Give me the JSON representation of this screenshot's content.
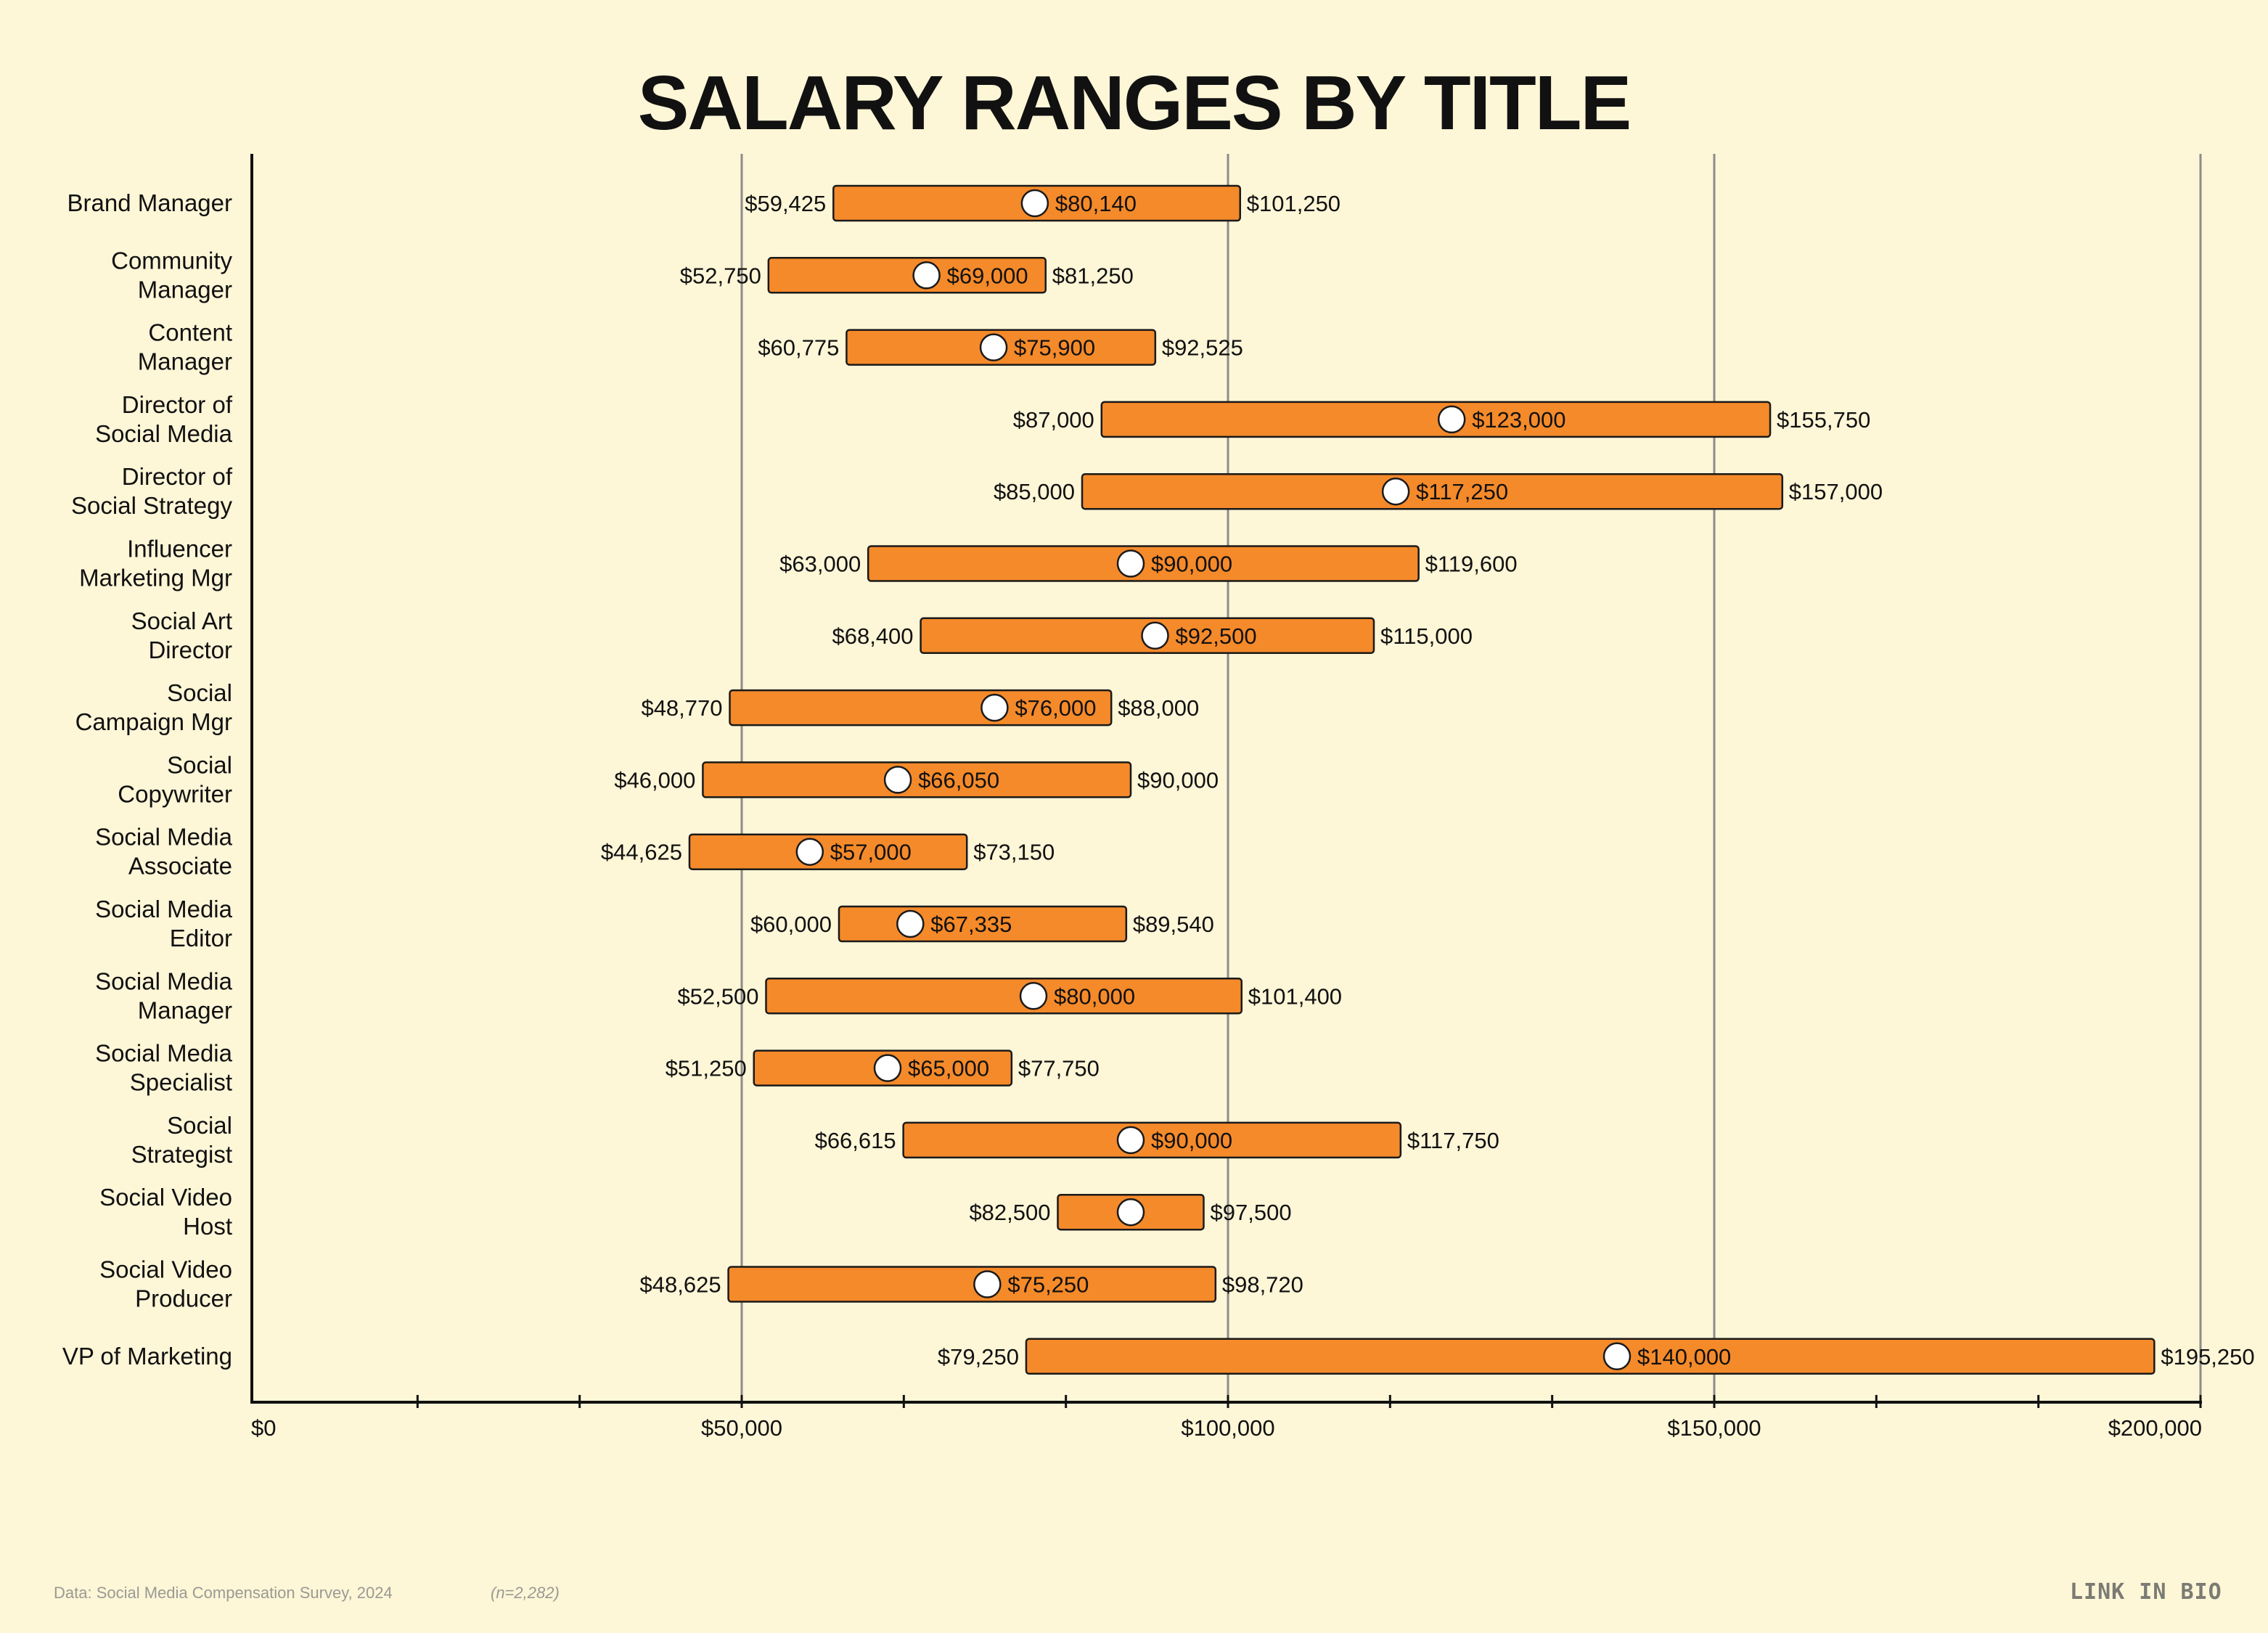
{
  "chart_data": {
    "type": "range-bar",
    "title": "SALARY RANGES BY TITLE",
    "xlim": [
      0,
      200000
    ],
    "xticks": [
      0,
      50000,
      100000,
      150000,
      200000
    ],
    "xtick_labels": [
      "$0",
      "$50,000",
      "$100,000",
      "$150,000",
      "$200,000"
    ],
    "grid": true,
    "rows": [
      {
        "title": [
          "Brand Manager"
        ],
        "min": 59425,
        "median": 80140,
        "max": 101250,
        "min_label": "$59,425",
        "median_label": "$80,140",
        "max_label": "$101,250"
      },
      {
        "title": [
          "Community",
          "Manager"
        ],
        "min": 52750,
        "median": 69000,
        "max": 81250,
        "min_label": "$52,750",
        "median_label": "$69,000",
        "max_label": "$81,250"
      },
      {
        "title": [
          "Content",
          "Manager"
        ],
        "min": 60775,
        "median": 75900,
        "max": 92525,
        "min_label": "$60,775",
        "median_label": "$75,900",
        "max_label": "$92,525"
      },
      {
        "title": [
          "Director of",
          "Social Media"
        ],
        "min": 87000,
        "median": 123000,
        "max": 155750,
        "min_label": "$87,000",
        "median_label": "$123,000",
        "max_label": "$155,750"
      },
      {
        "title": [
          "Director of",
          "Social Strategy"
        ],
        "min": 85000,
        "median": 117250,
        "max": 157000,
        "min_label": "$85,000",
        "median_label": "$117,250",
        "max_label": "$157,000"
      },
      {
        "title": [
          "Influencer",
          "Marketing Mgr"
        ],
        "min": 63000,
        "median": 90000,
        "max": 119600,
        "min_label": "$63,000",
        "median_label": "$90,000",
        "max_label": "$119,600"
      },
      {
        "title": [
          "Social Art",
          "Director"
        ],
        "min": 68400,
        "median": 92500,
        "max": 115000,
        "min_label": "$68,400",
        "median_label": "$92,500",
        "max_label": "$115,000"
      },
      {
        "title": [
          "Social",
          "Campaign Mgr"
        ],
        "min": 48770,
        "median": 76000,
        "max": 88000,
        "min_label": "$48,770",
        "median_label": "$76,000",
        "max_label": "$88,000"
      },
      {
        "title": [
          "Social",
          "Copywriter"
        ],
        "min": 46000,
        "median": 66050,
        "max": 90000,
        "min_label": "$46,000",
        "median_label": "$66,050",
        "max_label": "$90,000"
      },
      {
        "title": [
          "Social Media",
          "Associate"
        ],
        "min": 44625,
        "median": 57000,
        "max": 73150,
        "min_label": "$44,625",
        "median_label": "$57,000",
        "max_label": "$73,150"
      },
      {
        "title": [
          "Social Media",
          "Editor"
        ],
        "min": 60000,
        "median": 67335,
        "max": 89540,
        "min_label": "$60,000",
        "median_label": "$67,335",
        "max_label": "$89,540"
      },
      {
        "title": [
          "Social Media",
          "Manager"
        ],
        "min": 52500,
        "median": 80000,
        "max": 101400,
        "min_label": "$52,500",
        "median_label": "$80,000",
        "max_label": "$101,400"
      },
      {
        "title": [
          "Social Media",
          "Specialist"
        ],
        "min": 51250,
        "median": 65000,
        "max": 77750,
        "min_label": "$51,250",
        "median_label": "$65,000",
        "max_label": "$77,750"
      },
      {
        "title": [
          "Social",
          "Strategist"
        ],
        "min": 66615,
        "median": 90000,
        "max": 117750,
        "min_label": "$66,615",
        "median_label": "$90,000",
        "max_label": "$117,750"
      },
      {
        "title": [
          "Social Video",
          "Host"
        ],
        "min": 82500,
        "median": 90000,
        "max": 97500,
        "min_label": "$82,500",
        "median_label": "",
        "max_label": "$97,500"
      },
      {
        "title": [
          "Social Video",
          "Producer"
        ],
        "min": 48625,
        "median": 75250,
        "max": 98720,
        "min_label": "$48,625",
        "median_label": "$75,250",
        "max_label": "$98,720"
      },
      {
        "title": [
          "VP of Marketing"
        ],
        "min": 79250,
        "median": 140000,
        "max": 195250,
        "min_label": "$79,250",
        "median_label": "$140,000",
        "max_label": "$195,250"
      }
    ],
    "colors": {
      "background": "#FDF6D7",
      "bar_fill": "#F58A2A",
      "bar_stroke": "#1a1a1a",
      "median_dot": "#FFFFFF",
      "gridline": "#8c8c8c",
      "axis": "#111111"
    }
  },
  "footer": {
    "source": "Data: Social Media Compensation Survey, 2024",
    "n": "(n=2,282)",
    "logo": "LINK IN BIO"
  }
}
